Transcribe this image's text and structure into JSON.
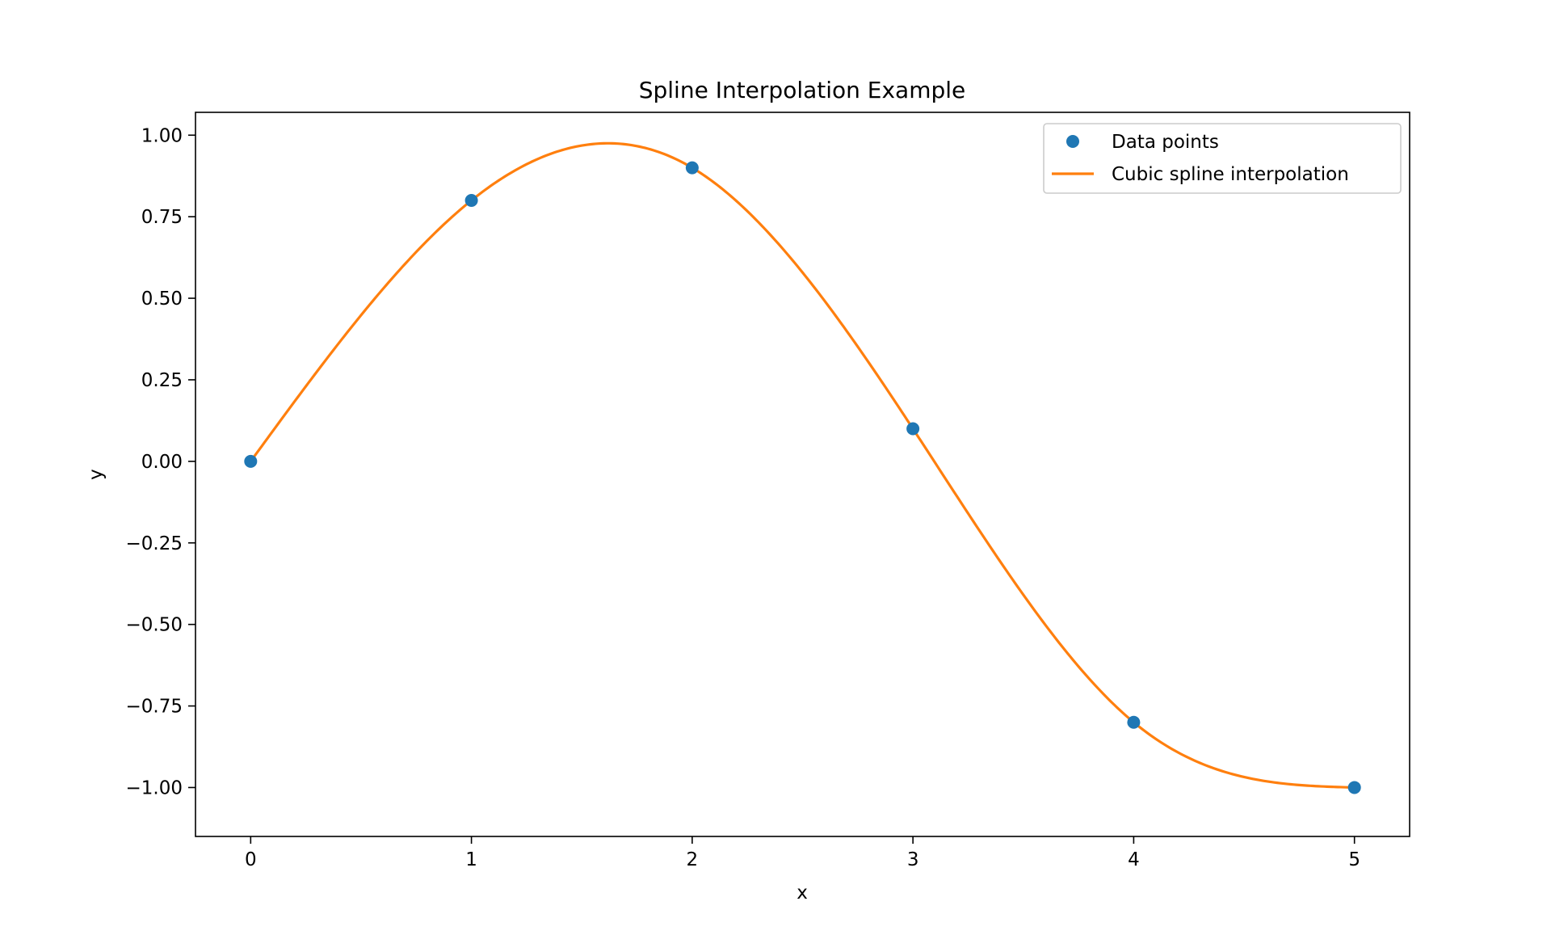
{
  "chart_data": {
    "type": "line",
    "title": "Spline Interpolation Example",
    "xlabel": "x",
    "ylabel": "y",
    "xlim": [
      -0.25,
      5.25
    ],
    "ylim": [
      -1.15,
      1.07
    ],
    "x_ticks": [
      0,
      1,
      2,
      3,
      4,
      5
    ],
    "x_tick_labels": [
      "0",
      "1",
      "2",
      "3",
      "4",
      "5"
    ],
    "y_ticks": [
      1.0,
      0.75,
      0.5,
      0.25,
      0.0,
      -0.25,
      -0.5,
      -0.75,
      -1.0
    ],
    "y_tick_labels": [
      "1.00",
      "0.75",
      "0.50",
      "0.25",
      "0.00",
      "−0.25",
      "−0.50",
      "−0.75",
      "−1.00"
    ],
    "grid": false,
    "legend_position": "top-right",
    "series": [
      {
        "name": "Data points",
        "kind": "scatter",
        "color": "#1f77b4",
        "x": [
          0,
          1,
          2,
          3,
          4,
          5
        ],
        "y": [
          0.0,
          0.8,
          0.9,
          0.1,
          -0.8,
          -1.0
        ]
      },
      {
        "name": "Cubic spline interpolation",
        "kind": "line",
        "color": "#ff7f0e",
        "x": [
          0,
          1,
          2,
          3,
          4,
          5
        ],
        "y": [
          0.0,
          0.8,
          0.9,
          0.1,
          -0.8,
          -1.0
        ]
      }
    ]
  }
}
